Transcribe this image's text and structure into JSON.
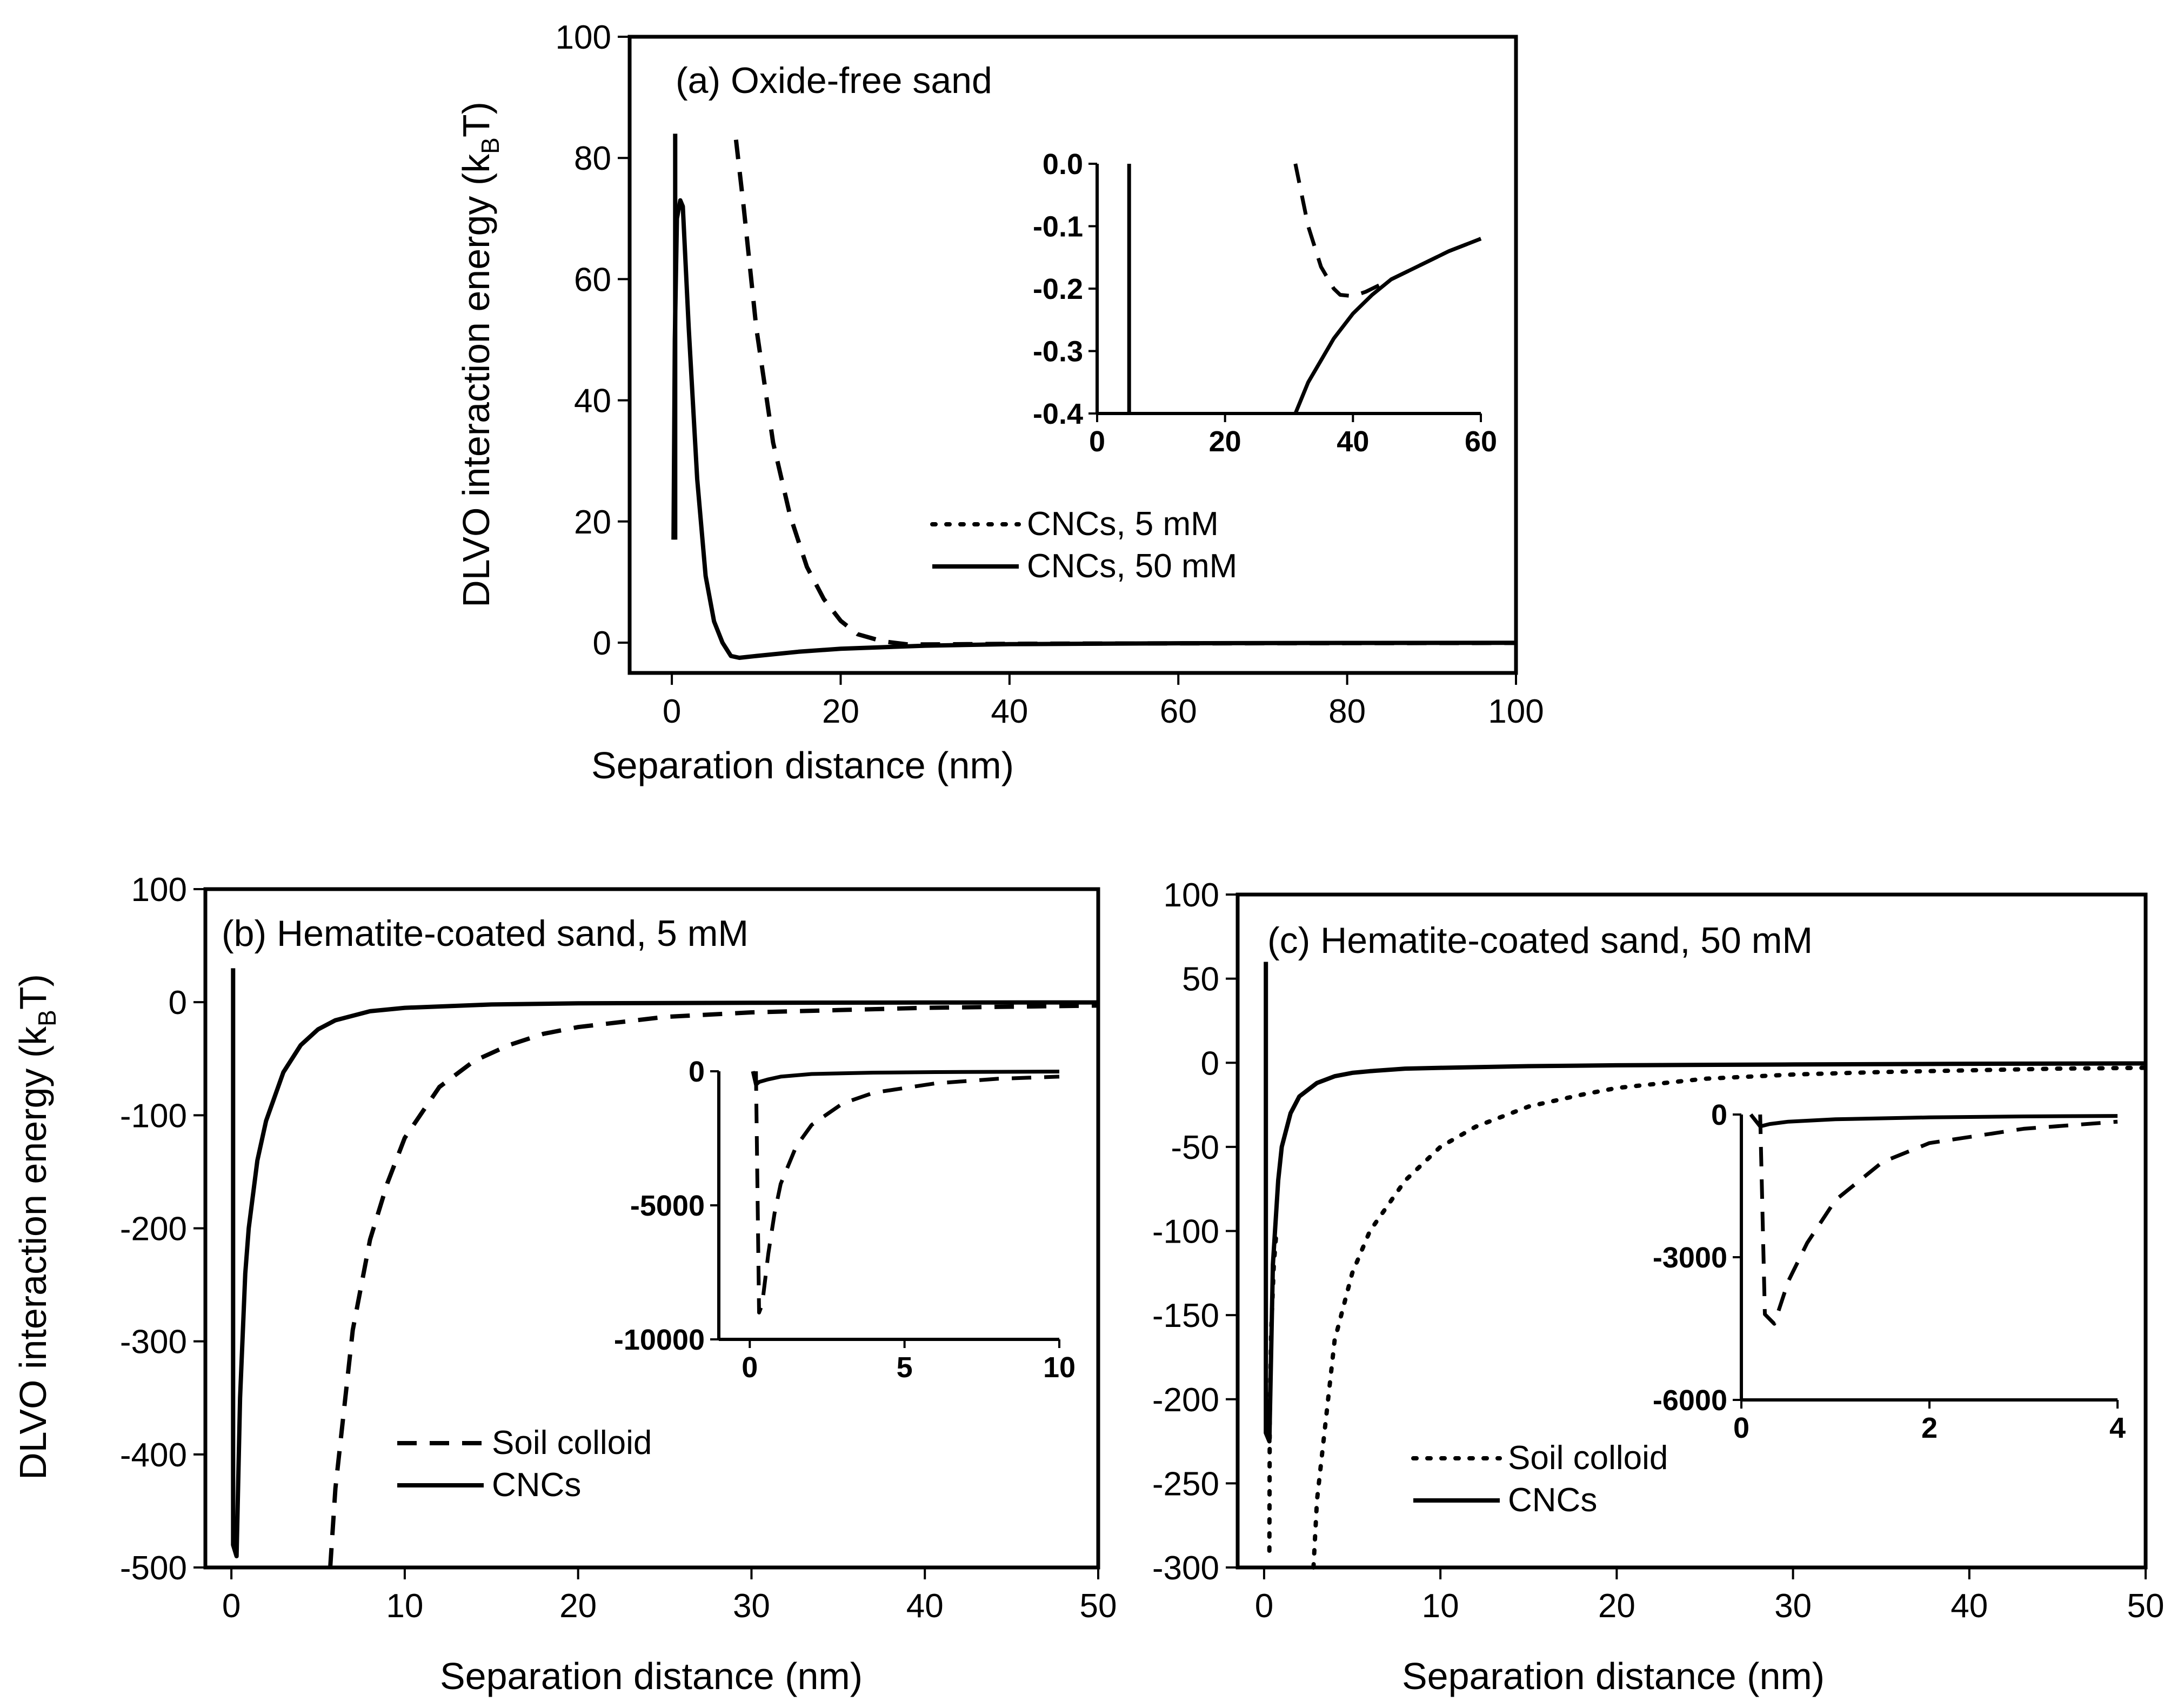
{
  "chart_data": [
    {
      "id": "a",
      "type": "line",
      "title": "(a) Oxide-free sand",
      "xlabel": "Separation distance (nm)",
      "ylabel": "DLVO interaction energy (k",
      "ylabel_sub": "B",
      "ylabel_tail": "T)",
      "xlim": [
        -5,
        100
      ],
      "ylim": [
        -5,
        100
      ],
      "xticks": [
        0,
        20,
        40,
        60,
        80,
        100
      ],
      "yticks": [
        0,
        20,
        40,
        60,
        80,
        100
      ],
      "tick_labels_x": [
        "0",
        "20",
        "40",
        "60",
        "80",
        "100"
      ],
      "tick_labels_y": [
        "0",
        "20",
        "40",
        "60",
        "80",
        "100"
      ],
      "legend": [
        "CNCs, 5 mM",
        "CNCs, 50 mM"
      ],
      "series": [
        {
          "name": "CNCs, 5 mM",
          "style": "dashed",
          "x": [
            7.6,
            8.5,
            10,
            12,
            14,
            16,
            18,
            20,
            22,
            25,
            28,
            30,
            35,
            40,
            50,
            60,
            80,
            100
          ],
          "y": [
            83,
            72,
            52,
            33,
            21,
            12.5,
            7.2,
            3.6,
            1.4,
            0.2,
            -0.3,
            -0.3,
            -0.25,
            -0.2,
            -0.15,
            -0.12,
            -0.08,
            -0.05
          ]
        },
        {
          "name": "CNCs, 50 mM",
          "style": "solid",
          "x": [
            0.2,
            0.35,
            0.6,
            1.0,
            1.3,
            2.0,
            3.0,
            4.0,
            5.0,
            6.0,
            7.0,
            8.0,
            10,
            15,
            20,
            30,
            40,
            60,
            80,
            100
          ],
          "y": [
            17,
            50,
            70,
            73,
            72,
            52,
            27,
            11,
            3.5,
            0,
            -2.2,
            -2.5,
            -2.2,
            -1.5,
            -1.0,
            -0.5,
            -0.25,
            -0.1,
            -0.05,
            -0.03
          ]
        },
        {
          "name": "CNCs, 50 mM (barrier spike)",
          "style": "solid",
          "x": [
            0.4,
            0.4
          ],
          "y": [
            17,
            84
          ]
        }
      ],
      "inset": {
        "xlim": [
          0,
          60
        ],
        "ylim": [
          -0.4,
          0.0
        ],
        "xticks": [
          0,
          20,
          40,
          60
        ],
        "yticks": [
          0.0,
          -0.1,
          -0.2,
          -0.3,
          -0.4
        ],
        "tick_labels_x": [
          "0",
          "20",
          "40",
          "60"
        ],
        "tick_labels_y": [
          "0.0",
          "-0.1",
          "-0.2",
          "-0.3",
          "-0.4"
        ],
        "series": [
          {
            "name": "CNCs, 5 mM",
            "style": "dashed",
            "x": [
              31,
              33,
              35,
              37,
              38,
              40,
              42,
              45,
              50,
              55,
              60
            ],
            "y": [
              0.0,
              -0.1,
              -0.165,
              -0.2,
              -0.21,
              -0.212,
              -0.205,
              -0.19,
              -0.165,
              -0.14,
              -0.12
            ]
          },
          {
            "name": "CNCs, 50 mM",
            "style": "solid",
            "x": [
              31,
              33,
              35,
              37,
              40,
              43,
              46,
              50,
              55,
              60
            ],
            "y": [
              -0.4,
              -0.35,
              -0.315,
              -0.28,
              -0.24,
              -0.21,
              -0.185,
              -0.165,
              -0.14,
              -0.12
            ]
          },
          {
            "name": "CNCs, 50 mM (spike)",
            "style": "solid",
            "x": [
              5,
              5
            ],
            "y": [
              -0.4,
              0.0
            ]
          }
        ]
      }
    },
    {
      "id": "b",
      "type": "line",
      "title": "(b) Hematite-coated sand, 5 mM",
      "xlabel": "Separation distance (nm)",
      "ylabel": "DLVO interaction energy (k",
      "ylabel_sub": "B",
      "ylabel_tail": "T)",
      "xlim": [
        -1.5,
        50
      ],
      "ylim": [
        -500,
        100
      ],
      "xticks": [
        0,
        10,
        20,
        30,
        40,
        50
      ],
      "yticks": [
        100,
        0,
        -100,
        -200,
        -300,
        -400,
        -500
      ],
      "tick_labels_x": [
        "0",
        "10",
        "20",
        "30",
        "40",
        "50"
      ],
      "tick_labels_y": [
        "100",
        "0",
        "-100",
        "-200",
        "-300",
        "-400",
        "-500"
      ],
      "legend": [
        "Soil colloid",
        "CNCs"
      ],
      "series": [
        {
          "name": "Soil colloid",
          "style": "dashed",
          "x": [
            5.7,
            6,
            7,
            8,
            9,
            10,
            12,
            14,
            16,
            18,
            20,
            25,
            30,
            35,
            40,
            45,
            50
          ],
          "y": [
            -500,
            -430,
            -290,
            -210,
            -160,
            -120,
            -75,
            -52,
            -38,
            -28,
            -22,
            -13,
            -9,
            -7,
            -5,
            -4,
            -3
          ]
        },
        {
          "name": "CNCs",
          "style": "solid",
          "x": [
            0.1,
            0.1,
            0.3,
            0.5,
            0.8,
            1,
            1.5,
            2,
            3,
            4,
            5,
            6,
            8,
            10,
            15,
            20,
            30,
            40,
            50
          ],
          "y": [
            30,
            -480,
            -490,
            -350,
            -240,
            -200,
            -140,
            -105,
            -62,
            -38,
            -24,
            -16,
            -8,
            -5,
            -2,
            -1,
            -0.5,
            -0.3,
            -0.2
          ]
        }
      ],
      "inset": {
        "xlim": [
          -1,
          10
        ],
        "ylim": [
          -10000,
          0
        ],
        "xticks": [
          0,
          5,
          10
        ],
        "yticks": [
          0,
          -5000,
          -10000
        ],
        "tick_labels_x": [
          "0",
          "5",
          "10"
        ],
        "tick_labels_y": [
          "0",
          "-5000",
          "-10000"
        ],
        "series": [
          {
            "name": "Soil colloid",
            "style": "dashed",
            "x": [
              0.2,
              0.3,
              0.4,
              0.6,
              0.8,
              1,
              1.5,
              2,
              3,
              4,
              6,
              8,
              10
            ],
            "y": [
              0,
              -9000,
              -8700,
              -6800,
              -5300,
              -4200,
              -2800,
              -2000,
              -1200,
              -800,
              -450,
              -280,
              -200
            ]
          },
          {
            "name": "CNCs",
            "style": "solid",
            "x": [
              0.1,
              0.2,
              0.3,
              0.6,
              1,
              2,
              4,
              6,
              8,
              10
            ],
            "y": [
              0,
              -500,
              -400,
              -300,
              -200,
              -100,
              -50,
              -30,
              -20,
              -10
            ]
          }
        ]
      }
    },
    {
      "id": "c",
      "type": "line",
      "title": "(c) Hematite-coated sand, 50 mM",
      "xlabel": "Separation distance (nm)",
      "xlim": [
        -1.5,
        50
      ],
      "ylim": [
        -300,
        100
      ],
      "xticks": [
        0,
        10,
        20,
        30,
        40,
        50
      ],
      "yticks": [
        100,
        50,
        0,
        -50,
        -100,
        -150,
        -200,
        -250,
        -300
      ],
      "tick_labels_x": [
        "0",
        "10",
        "20",
        "30",
        "40",
        "50"
      ],
      "tick_labels_y": [
        "100",
        "50",
        "0",
        "-50",
        "-100",
        "-150",
        "-200",
        "-250",
        "-300"
      ],
      "legend": [
        "Soil colloid",
        "CNCs"
      ],
      "series": [
        {
          "name": "Soil colloid",
          "style": "dotted",
          "x": [
            0.3,
            0.32,
            0.4,
            0.55,
            0.7
          ],
          "y": [
            -290,
            -210,
            -160,
            -120,
            -100
          ]
        },
        {
          "name": "Soil colloid (outer branch)",
          "style": "dotted",
          "x": [
            2.8,
            3,
            4,
            5,
            6,
            8,
            10,
            12,
            15,
            18,
            20,
            25,
            30,
            35,
            40,
            45,
            50
          ],
          "y": [
            -300,
            -260,
            -165,
            -125,
            -100,
            -70,
            -50,
            -38,
            -26,
            -19,
            -15,
            -9.5,
            -7,
            -5.5,
            -4.5,
            -3.5,
            -3
          ]
        },
        {
          "name": "CNCs",
          "style": "solid",
          "x": [
            0.1,
            0.1,
            0.3,
            0.5,
            0.8,
            1,
            1.5,
            2,
            3,
            4,
            5,
            6,
            8,
            10,
            15,
            20,
            30,
            40,
            50
          ],
          "y": [
            60,
            -220,
            -225,
            -120,
            -70,
            -50,
            -30,
            -20,
            -12,
            -8,
            -6,
            -5,
            -3.5,
            -3,
            -2,
            -1.5,
            -1,
            -0.6,
            -0.4
          ]
        }
      ],
      "inset": {
        "xlim": [
          0,
          4
        ],
        "ylim": [
          -6000,
          0
        ],
        "xticks": [
          0,
          2,
          4
        ],
        "yticks": [
          0,
          -3000,
          -6000
        ],
        "tick_labels_x": [
          "0",
          "2",
          "4"
        ],
        "tick_labels_y": [
          "0",
          "-3000",
          "-6000"
        ],
        "series": [
          {
            "name": "Soil colloid",
            "style": "dashed",
            "x": [
              0.2,
              0.25,
              0.35,
              0.5,
              0.7,
              1,
              1.5,
              2,
              3,
              4
            ],
            "y": [
              0,
              -4200,
              -4400,
              -3500,
              -2700,
              -1800,
              -1000,
              -600,
              -300,
              -150
            ]
          },
          {
            "name": "CNCs",
            "style": "solid",
            "x": [
              0.1,
              0.2,
              0.3,
              0.5,
              1,
              2,
              3,
              4
            ],
            "y": [
              0,
              -250,
              -200,
              -150,
              -100,
              -60,
              -40,
              -30
            ]
          }
        ]
      }
    }
  ]
}
